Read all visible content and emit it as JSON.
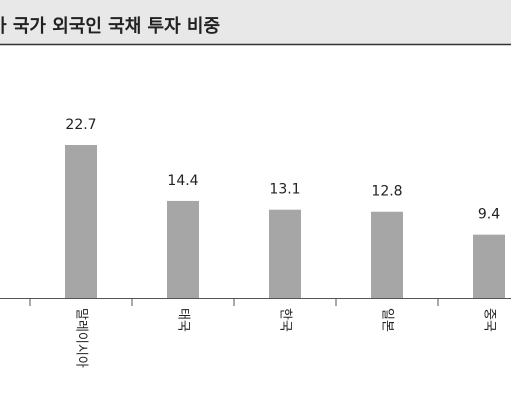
{
  "chart_data": {
    "type": "bar",
    "title": "아 국가 외국인 국채 투자 비중",
    "categories": [
      "말레이시아",
      "태국",
      "한국",
      "일본",
      "중국"
    ],
    "values": [
      22.7,
      14.4,
      13.1,
      12.8,
      9.4
    ],
    "color": "#a6a6a6"
  }
}
